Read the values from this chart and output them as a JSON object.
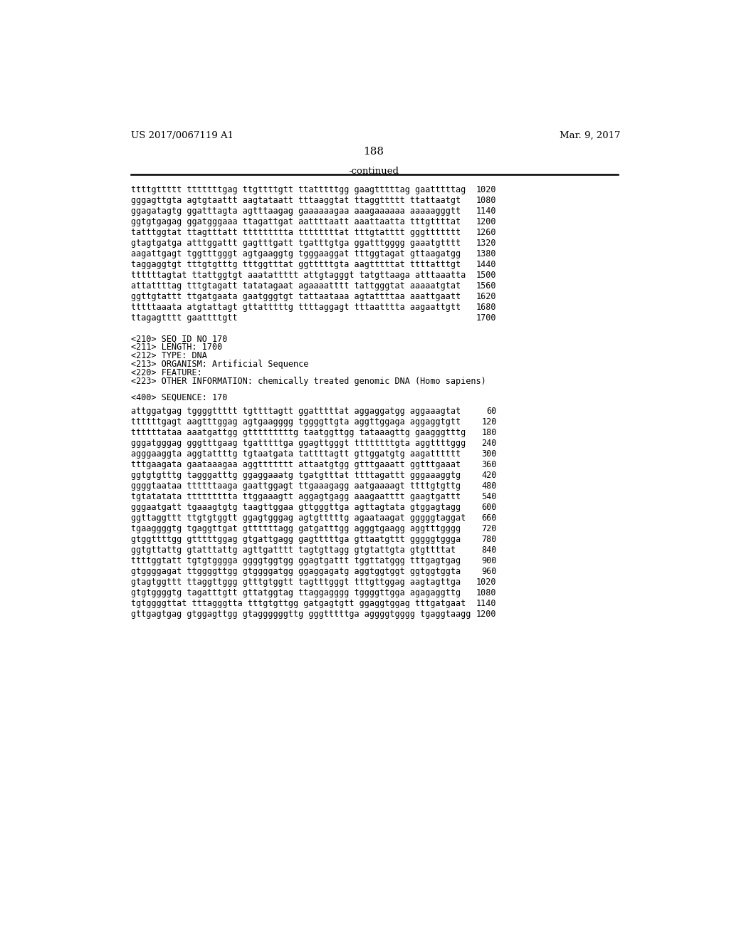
{
  "header_left": "US 2017/0067119 A1",
  "header_right": "Mar. 9, 2017",
  "page_number": "188",
  "continued_label": "-continued",
  "background_color": "#ffffff",
  "text_color": "#000000",
  "mono_font_size": 8.5,
  "sequence_lines_top": [
    [
      "ttttgttttt tttttttgag ttgttttgtt ttatttttgg gaagtttttag gaatttttag",
      "1020"
    ],
    [
      "gggagttgta agtgtaattt aagtataatt tttaaggtat ttaggttttt ttattaatgt",
      "1080"
    ],
    [
      "ggagatagtg ggatttagta agtttaagag gaaaaaagaa aaagaaaaaa aaaaagggtt",
      "1140"
    ],
    [
      "ggtgtgagag ggatgggaaa ttagattgat aattttaatt aaattaatta tttgttttat",
      "1200"
    ],
    [
      "tatttggtat ttagtttatt ttttttttta ttttttttat tttgtatttt gggttttttt",
      "1260"
    ],
    [
      "gtagtgatga atttggattt gagtttgatt tgatttgtga ggatttgggg gaaatgtttt",
      "1320"
    ],
    [
      "aagattgagt tggtttgggt agtgaaggtg tgggaaggat tttggtagat gttaagatgg",
      "1380"
    ],
    [
      "taggaggtgt tttgtgtttg tttggtttat ggtttttgta aagtttttat ttttatttgt",
      "1440"
    ],
    [
      "ttttttagtat ttattggtgt aaatattttt attgtagggt tatgttaaga atttaaatta",
      "1500"
    ],
    [
      "attattttag tttgtagatt tatatagaat agaaaatttt tattgggtat aaaaatgtat",
      "1560"
    ],
    [
      "ggttgtattt ttgatgaata gaatgggtgt tattaataaa agtattttaa aaattgaatt",
      "1620"
    ],
    [
      "tttttaaata atgtattagt gttatttttg ttttaggagt tttaatttta aagaattgtt",
      "1680"
    ],
    [
      "ttagagtttt gaattttgtt",
      "1700"
    ]
  ],
  "metadata_lines": [
    "<210> SEQ ID NO 170",
    "<211> LENGTH: 1700",
    "<212> TYPE: DNA",
    "<213> ORGANISM: Artificial Sequence",
    "<220> FEATURE:",
    "<223> OTHER INFORMATION: chemically treated genomic DNA (Homo sapiens)"
  ],
  "sequence_label": "<400> SEQUENCE: 170",
  "sequence_lines_bottom": [
    [
      "attggatgag tggggttttt tgttttagtt ggatttttat aggaggatgg aggaaagtat",
      "60"
    ],
    [
      "ttttttgagt aagtttggag agtgaagggg tggggttgta aggttggaga aggaggtgtt",
      "120"
    ],
    [
      "ttttttataa aaatgattgg gtttttttttg taatggttgg tataaagttg gaagggtttg",
      "180"
    ],
    [
      "gggatgggag gggtttgaag tgatttttga ggagttgggt ttttttttgta aggttttggg",
      "240"
    ],
    [
      "agggaaggta aggtattttg tgtaatgata tattttagtt gttggatgtg aagatttttt",
      "300"
    ],
    [
      "tttgaagata gaataaagaa aggttttttt attaatgtgg gtttgaaatt ggtttgaaat",
      "360"
    ],
    [
      "ggtgtgtttg tagggatttg ggaggaaatg tgatgtttat ttttagattt gggaaaggtg",
      "420"
    ],
    [
      "ggggtaataa ttttttaaga gaattggagt ttgaaagagg aatgaaaagt ttttgtgttg",
      "480"
    ],
    [
      "tgtatatata ttttttttta ttggaaagtt aggagtgagg aaagaatttt gaagtgattt",
      "540"
    ],
    [
      "gggaatgatt tgaaagtgtg taagttggaa gttgggttga agttagtata gtggagtagg",
      "600"
    ],
    [
      "ggttaggttt ttgtgtggtt ggagtgggag agtgtttttg agaataagat gggggtaggat",
      "660"
    ],
    [
      "tgaaggggtg tgaggttgat gttttttagg gatgatttgg agggtgaagg aggtttgggg",
      "720"
    ],
    [
      "gtggttttgg gtttttggag gtgattgagg gagtttttga gttaatgttt gggggtggga",
      "780"
    ],
    [
      "ggtgttattg gtatttattg agttgatttt tagtgttagg gtgtattgta gtgttttat",
      "840"
    ],
    [
      "ttttggtatt tgtgtgggga ggggtggtgg ggagtgattt tggttatggg tttgagtgag",
      "900"
    ],
    [
      "gtggggagat ttggggttgg gtggggatgg ggaggagatg aggtggtggt ggtggtggta",
      "960"
    ],
    [
      "gtagtggttt ttaggttggg gtttgtggtt tagtttgggt tttgttggag aagtagttga",
      "1020"
    ],
    [
      "gtgtggggtg tagatttgtt gttatggtag ttaggagggg tggggttgga agagaggttg",
      "1080"
    ],
    [
      "tgtggggttat tttagggtta tttgtgttgg gatgagtgtt ggaggtggag tttgatgaat",
      "1140"
    ],
    [
      "gttgagtgag gtggagttgg gtaggggggttg gggtttttga aggggtgggg tgaggtaagg",
      "1200"
    ]
  ]
}
